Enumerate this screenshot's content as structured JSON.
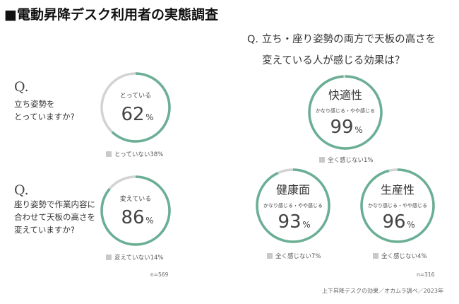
{
  "title": "■電動昇降デスク利用者の実態調査",
  "left_panel": {
    "q1": {
      "q_mark": "Q.",
      "question": "立ち姿勢を\nとっていますか?",
      "center_label": "とっている",
      "percent": "62",
      "unit": "%",
      "legend": "とっていない38%"
    },
    "q2": {
      "q_mark": "Q.",
      "question": "座り姿勢で作業内容に\n合わせて天板の高さを\n変えていますか?",
      "center_label": "変えている",
      "percent": "86",
      "unit": "%",
      "legend": "変えていない14%"
    },
    "n": "n=569"
  },
  "right_panel": {
    "question_line1": "Q. 立ち・座り姿勢の両方で天板の高さを",
    "question_line2": "変えている人が感じる効果は？",
    "effects": [
      {
        "heading": "快適性",
        "sublabel": "かなり感じる・やや感じる",
        "percent": "99",
        "unit": "%",
        "legend": "全く感じない1%"
      },
      {
        "heading": "健康面",
        "sublabel": "かなり感じる・やや感じる",
        "percent": "93",
        "unit": "%",
        "legend": "全く感じない7%"
      },
      {
        "heading": "生産性",
        "sublabel": "かなり感じる・やや感じる",
        "percent": "96",
        "unit": "%",
        "legend": "全く感じない4%"
      }
    ],
    "n": "n=316"
  },
  "source": "上下昇降デスクの効果／オカムラ調べ／2023年",
  "colors": {
    "accent": "#6aaf94",
    "remainder": "#d3d3d3",
    "legend_square": "#c9c9c9"
  },
  "chart_data": [
    {
      "type": "pie",
      "title": "",
      "categories": [
        "とっている",
        "とっていない"
      ],
      "values": [
        62,
        38
      ]
    },
    {
      "type": "pie",
      "title": "",
      "categories": [
        "変えている",
        "変えていない"
      ],
      "values": [
        86,
        14
      ]
    },
    {
      "type": "pie",
      "title": "快適性",
      "categories": [
        "かなり感じる・やや感じる",
        "全く感じない"
      ],
      "values": [
        99,
        1
      ]
    },
    {
      "type": "pie",
      "title": "健康面",
      "categories": [
        "かなり感じる・やや感じる",
        "全く感じない"
      ],
      "values": [
        93,
        7
      ]
    },
    {
      "type": "pie",
      "title": "生産性",
      "categories": [
        "かなり感じる・やや感じる",
        "全く感じない"
      ],
      "values": [
        96,
        4
      ]
    }
  ]
}
